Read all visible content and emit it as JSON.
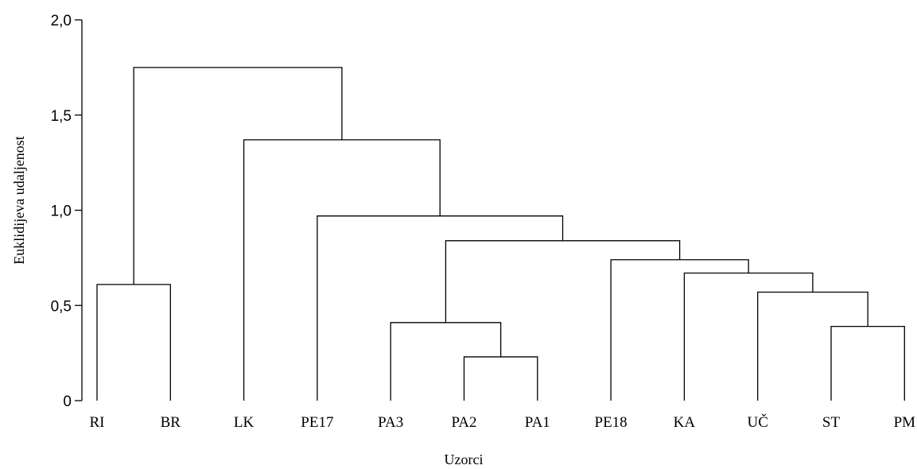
{
  "chart_data": {
    "type": "dendrogram",
    "ylabel": "Euklidijeva udaljenost",
    "xlabel": "Uzorci",
    "ylim": [
      0,
      2.0
    ],
    "yticks": [
      {
        "value": 0,
        "label": "0"
      },
      {
        "value": 0.5,
        "label": "0,5"
      },
      {
        "value": 1.0,
        "label": "1,0"
      },
      {
        "value": 1.5,
        "label": "1,5"
      },
      {
        "value": 2.0,
        "label": "2,0"
      }
    ],
    "leaves": [
      "RI",
      "BR",
      "LK",
      "PE17",
      "PA3",
      "PA2",
      "PA1",
      "PE18",
      "KA",
      "UČ",
      "ST",
      "PM"
    ],
    "merges": [
      {
        "left": "PA2",
        "right": "PA1",
        "height": 0.23
      },
      {
        "left": "ST",
        "right": "PM",
        "height": 0.39
      },
      {
        "left": "PA3",
        "right": "PA2+PA1",
        "height": 0.41
      },
      {
        "left": "UČ",
        "right": "ST+PM",
        "height": 0.57
      },
      {
        "left": "RI",
        "right": "BR",
        "height": 0.61
      },
      {
        "left": "KA",
        "right": "UČ+ST+PM",
        "height": 0.67
      },
      {
        "left": "PE18",
        "right": "KA+UČ+ST+PM",
        "height": 0.74
      },
      {
        "left": "PA3+PA2+PA1",
        "right": "PE18+KA+UČ+ST+PM",
        "height": 0.84
      },
      {
        "left": "PE17",
        "right": "PA3+PA2+PA1+PE18+KA+UČ+ST+PM",
        "height": 0.97
      },
      {
        "left": "LK",
        "right": "PE17+PA3+PA2+PA1+PE18+KA+UČ+ST+PM",
        "height": 1.37
      },
      {
        "left": "RI+BR",
        "right": "LK+PE17+PA3+PA2+PA1+PE18+KA+UČ+ST+PM",
        "height": 1.75
      }
    ]
  }
}
